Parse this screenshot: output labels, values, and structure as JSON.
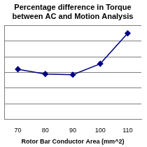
{
  "chart_data": {
    "type": "line",
    "title": "Percentage difference in Torque between AC and Motion Analysis",
    "x_label": "Rotor Bar Conductor Area (mm^2)",
    "categories": [
      "70",
      "80",
      "90",
      "100",
      "110"
    ],
    "values": [
      3.2,
      2.9,
      2.85,
      3.55,
      5.5
    ],
    "color": "#000080",
    "marker": "diamond",
    "line_style": "solid",
    "ylim": [
      0,
      6
    ],
    "yticks": [
      0,
      1,
      2,
      3,
      4,
      5,
      6
    ],
    "grid": true,
    "tick_labels": "x"
  }
}
